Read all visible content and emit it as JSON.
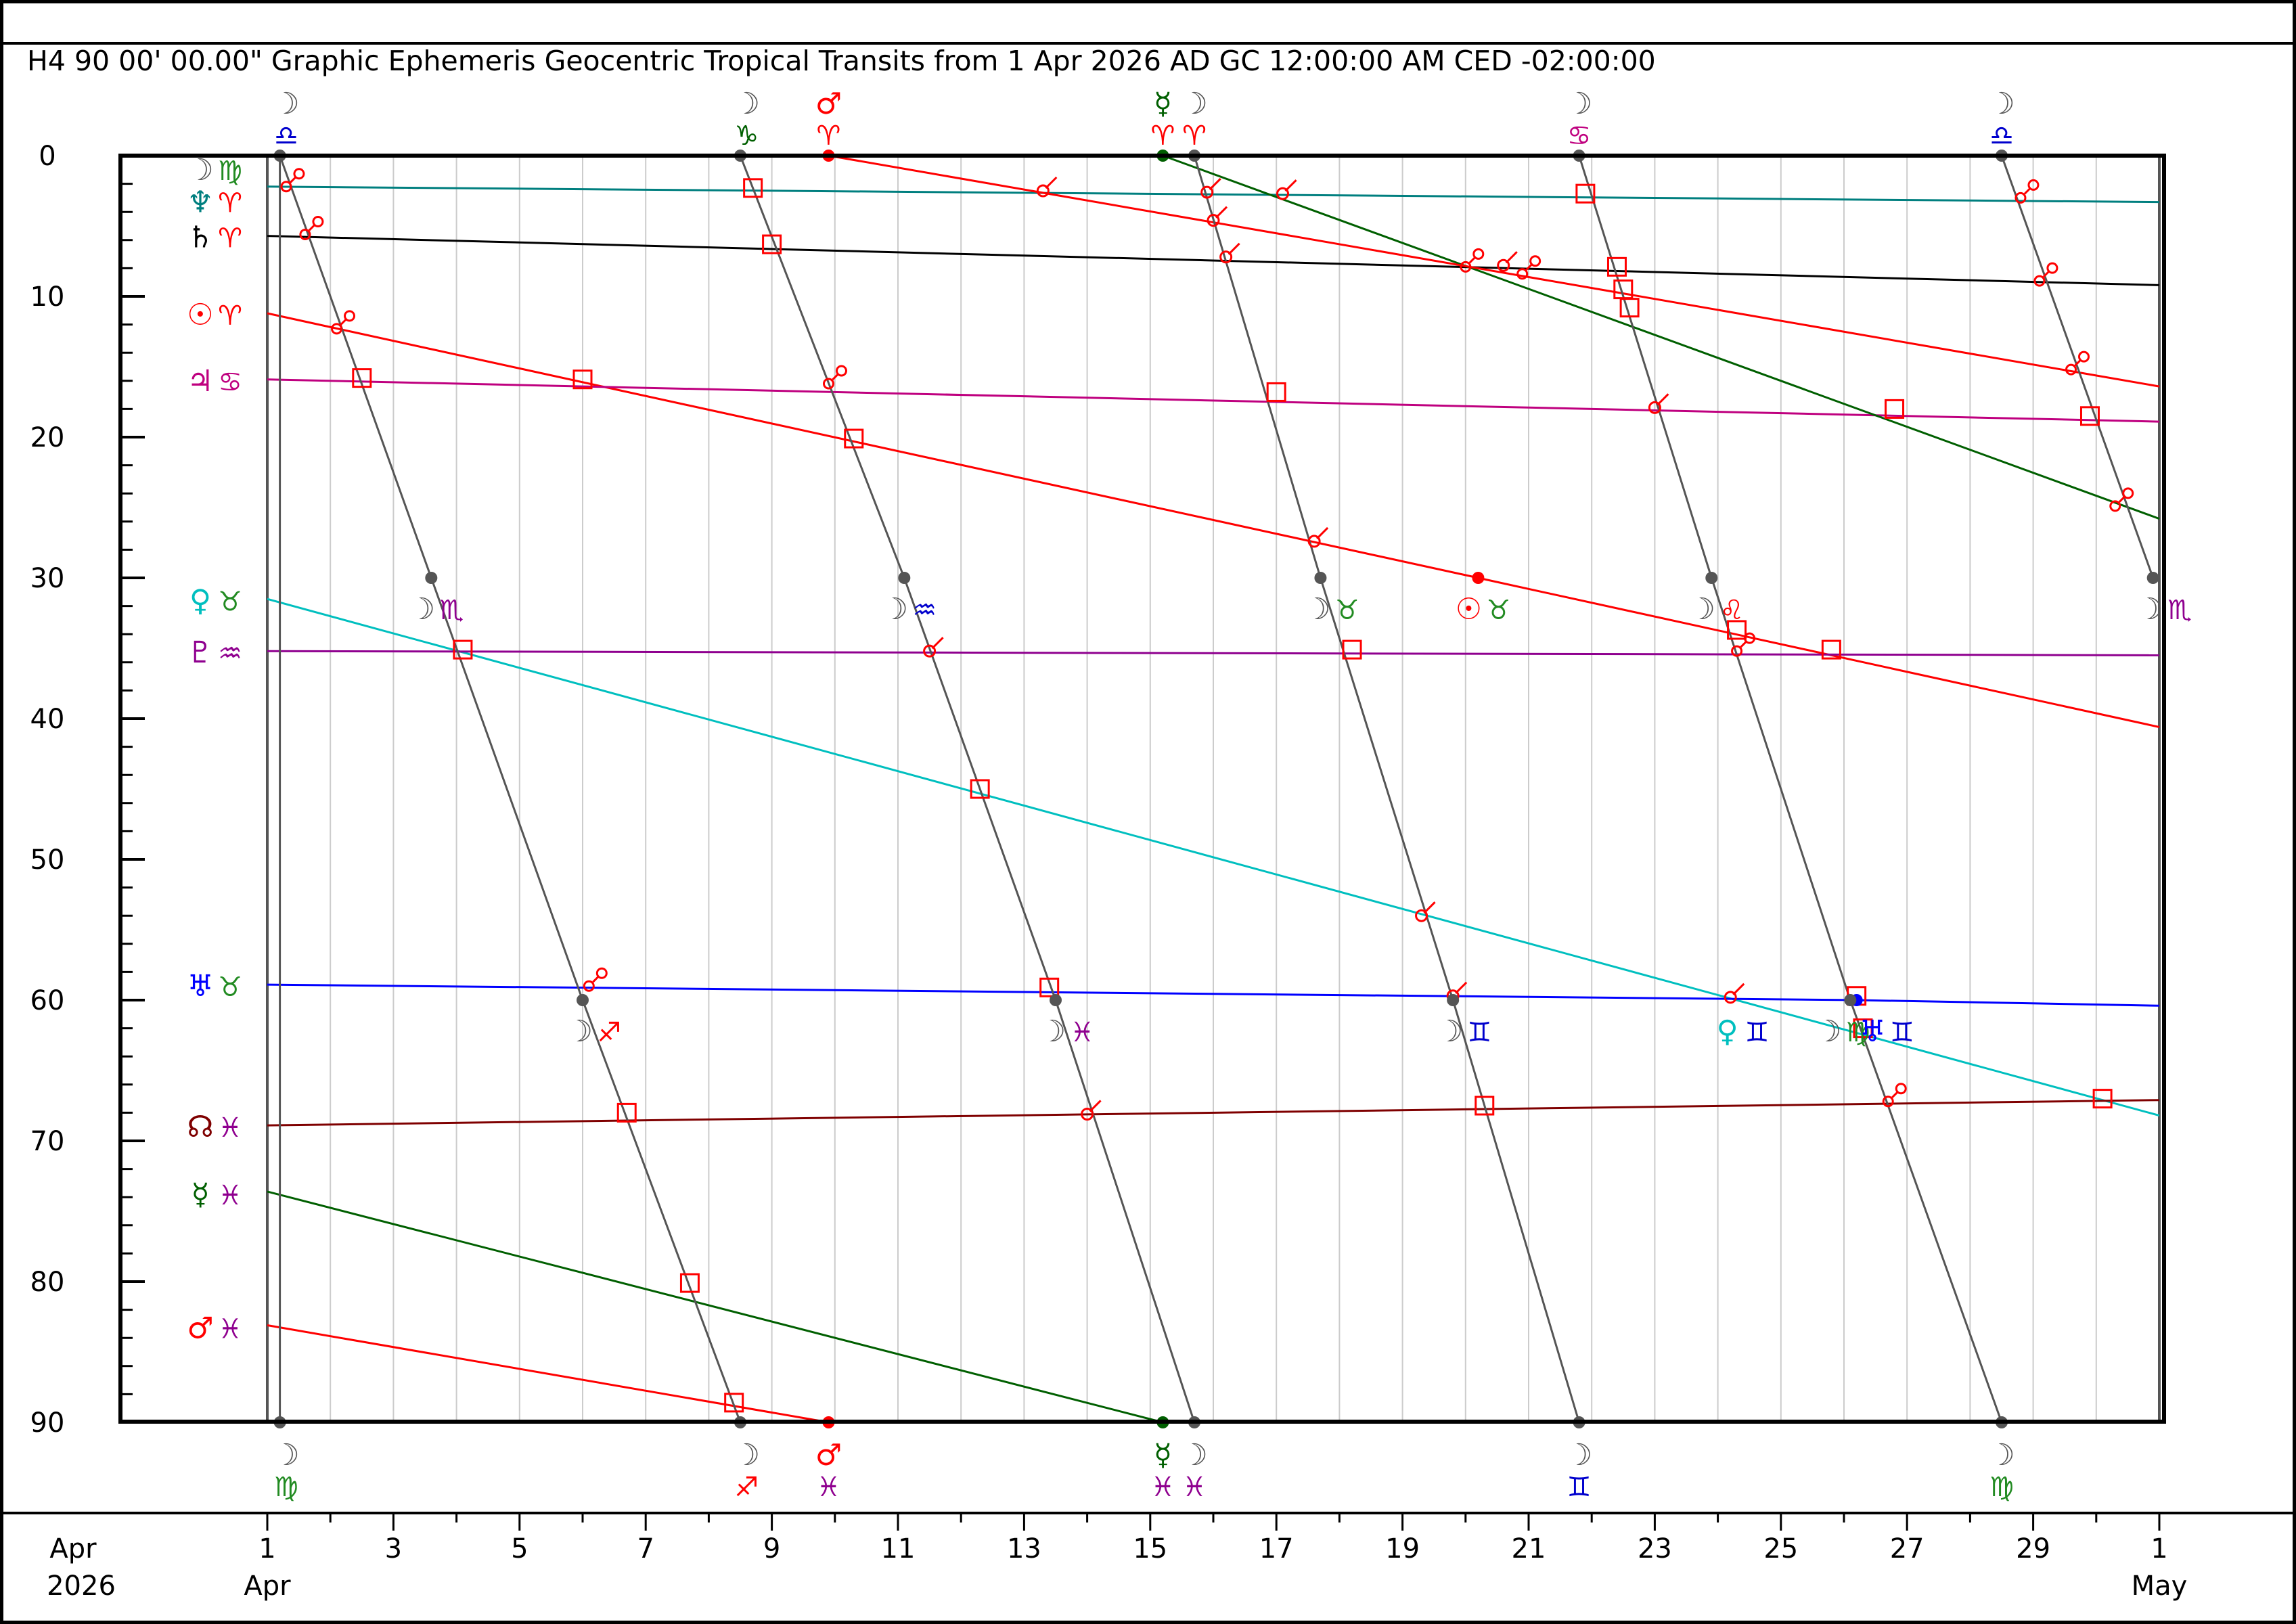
{
  "chart_data": {
    "type": "line",
    "title": "H4   90 00' 00.00\" Graphic Ephemeris Geocentric Tropical Transits from 1 Apr 2026 AD GC 12:00:00 AM CED -02:00:00",
    "xlabel": "",
    "ylabel": "",
    "x_range": [
      "2026-04-01",
      "2026-05-01"
    ],
    "ylim": [
      90,
      0
    ],
    "y_ticks": [
      0,
      10,
      20,
      30,
      40,
      50,
      60,
      70,
      80,
      90
    ],
    "x_tick_labels": [
      {
        "day": 1,
        "label": "1"
      },
      {
        "day": 3,
        "label": "3"
      },
      {
        "day": 5,
        "label": "5"
      },
      {
        "day": 7,
        "label": "7"
      },
      {
        "day": 9,
        "label": "9"
      },
      {
        "day": 11,
        "label": "11"
      },
      {
        "day": 13,
        "label": "13"
      },
      {
        "day": 15,
        "label": "15"
      },
      {
        "day": 17,
        "label": "17"
      },
      {
        "day": 19,
        "label": "19"
      },
      {
        "day": 21,
        "label": "21"
      },
      {
        "day": 23,
        "label": "23"
      },
      {
        "day": 25,
        "label": "25"
      },
      {
        "day": 27,
        "label": "27"
      },
      {
        "day": 29,
        "label": "29"
      },
      {
        "day": 31,
        "label": "1"
      }
    ],
    "x_corner_label": {
      "line1": "Apr",
      "line2": "2026"
    },
    "x_month_labels": [
      {
        "day": 1,
        "label": "Apr"
      },
      {
        "day": 31,
        "label": "May"
      }
    ],
    "grid": true,
    "series": [
      {
        "glyph": "♆♈",
        "color": "#007f7f",
        "points": [
          [
            1,
            2.2
          ],
          [
            31,
            3.3
          ]
        ]
      },
      {
        "glyph": "♄♈",
        "color": "#000000",
        "points": [
          [
            1,
            5.7
          ],
          [
            31,
            9.2
          ]
        ]
      },
      {
        "glyph": "☉♈",
        "color": "#ff0000",
        "points": [
          [
            1,
            11.2
          ],
          [
            20.2,
            30
          ],
          [
            31,
            40.6
          ]
        ]
      },
      {
        "glyph": "♃♋",
        "color": "#bf007f",
        "points": [
          [
            1,
            15.9
          ],
          [
            31,
            18.9
          ]
        ]
      },
      {
        "glyph": "♀♉",
        "color": "#00bfbf",
        "points": [
          [
            1,
            31.5
          ],
          [
            31,
            68.2
          ]
        ]
      },
      {
        "glyph": "♇♒",
        "color": "#8f008f",
        "points": [
          [
            1,
            35.2
          ],
          [
            31,
            35.5
          ]
        ]
      },
      {
        "glyph": "♅♉",
        "color": "#0000ff",
        "points": [
          [
            1,
            58.9
          ],
          [
            26.2,
            60
          ],
          [
            31,
            60.4
          ]
        ]
      },
      {
        "glyph": "☊♓",
        "color": "#7f0000",
        "points": [
          [
            1,
            68.9
          ],
          [
            31,
            67.1
          ]
        ]
      },
      {
        "glyph": "☿♓",
        "color": "#005f00",
        "points": [
          [
            1,
            73.6
          ],
          [
            15.2,
            90
          ]
        ]
      },
      {
        "glyph": "☿♈",
        "color": "#005f00",
        "points": [
          [
            15.2,
            0
          ],
          [
            31,
            25.8
          ]
        ]
      },
      {
        "glyph": "♂♓",
        "color": "#ff0000",
        "points": [
          [
            1,
            83.1
          ],
          [
            9.9,
            90
          ]
        ]
      },
      {
        "glyph": "♂♈",
        "color": "#ff0000",
        "points": [
          [
            9.9,
            0
          ],
          [
            31,
            16.4
          ]
        ]
      },
      {
        "glyph": "☽",
        "color": "#555555",
        "points": [
          [
            1.2,
            0
          ],
          [
            1.2,
            90
          ]
        ]
      },
      {
        "glyph": "☽",
        "color": "#555555",
        "points": [
          [
            1.2,
            0
          ],
          [
            3.6,
            30
          ],
          [
            6.0,
            60
          ],
          [
            8.5,
            90
          ]
        ]
      },
      {
        "glyph": "☽",
        "color": "#555555",
        "points": [
          [
            8.5,
            0
          ],
          [
            11.1,
            30
          ],
          [
            13.5,
            60
          ],
          [
            15.7,
            90
          ]
        ]
      },
      {
        "glyph": "☽",
        "color": "#555555",
        "points": [
          [
            15.7,
            0
          ],
          [
            17.7,
            30
          ],
          [
            19.8,
            60
          ],
          [
            21.8,
            90
          ]
        ]
      },
      {
        "glyph": "☽",
        "color": "#555555",
        "points": [
          [
            21.8,
            0
          ],
          [
            23.9,
            30
          ],
          [
            26.1,
            60
          ],
          [
            28.5,
            90
          ]
        ]
      },
      {
        "glyph": "☽",
        "color": "#555555",
        "points": [
          [
            28.5,
            0
          ],
          [
            30.9,
            30
          ]
        ]
      }
    ],
    "left_labels": [
      {
        "y": 1.0,
        "glyphs": [
          "☽",
          "♍"
        ],
        "colors": [
          "#555555",
          "#228b22"
        ]
      },
      {
        "y": 3.3,
        "glyphs": [
          "♆",
          "♈"
        ],
        "colors": [
          "#007f7f",
          "#ff0000"
        ]
      },
      {
        "y": 5.8,
        "glyphs": [
          "♄",
          "♈"
        ],
        "colors": [
          "#000000",
          "#ff0000"
        ]
      },
      {
        "y": 11.3,
        "glyphs": [
          "☉",
          "♈"
        ],
        "colors": [
          "#ff0000",
          "#ff0000"
        ]
      },
      {
        "y": 16.0,
        "glyphs": [
          "♃",
          "♋"
        ],
        "colors": [
          "#bf007f",
          "#bf007f"
        ]
      },
      {
        "y": 31.6,
        "glyphs": [
          "♀",
          "♉"
        ],
        "colors": [
          "#00bfbf",
          "#228b22"
        ]
      },
      {
        "y": 35.3,
        "glyphs": [
          "♇",
          "♒"
        ],
        "colors": [
          "#8f008f",
          "#8f008f"
        ]
      },
      {
        "y": 59.0,
        "glyphs": [
          "♅",
          "♉"
        ],
        "colors": [
          "#0000ff",
          "#228b22"
        ]
      },
      {
        "y": 69.0,
        "glyphs": [
          "☊",
          "♓"
        ],
        "colors": [
          "#7f0000",
          "#8f008f"
        ]
      },
      {
        "y": 73.8,
        "glyphs": [
          "☿",
          "♓"
        ],
        "colors": [
          "#005f00",
          "#8f008f"
        ]
      },
      {
        "y": 83.3,
        "glyphs": [
          "♂",
          "♓"
        ],
        "colors": [
          "#ff0000",
          "#8f008f"
        ]
      }
    ],
    "top_labels": [
      {
        "day": 1.3,
        "glyphs": [
          "☽",
          "♎"
        ],
        "colors": [
          "#555555",
          "#0000cd"
        ]
      },
      {
        "day": 8.6,
        "glyphs": [
          "☽",
          "♑"
        ],
        "colors": [
          "#555555",
          "#005f00"
        ]
      },
      {
        "day": 9.9,
        "glyphs": [
          "♂",
          "♈"
        ],
        "colors": [
          "#ff0000",
          "#ff0000"
        ]
      },
      {
        "day": 15.2,
        "glyphs": [
          "☿",
          "♈"
        ],
        "colors": [
          "#005f00",
          "#ff0000"
        ]
      },
      {
        "day": 15.7,
        "glyphs": [
          "☽",
          "♈"
        ],
        "colors": [
          "#555555",
          "#ff0000"
        ]
      },
      {
        "day": 21.8,
        "glyphs": [
          "☽",
          "♋"
        ],
        "colors": [
          "#555555",
          "#bf007f"
        ]
      },
      {
        "day": 28.5,
        "glyphs": [
          "☽",
          "♎"
        ],
        "colors": [
          "#555555",
          "#0000cd"
        ]
      }
    ],
    "bottom_labels": [
      {
        "day": 1.3,
        "glyphs": [
          "☽",
          "♍"
        ],
        "colors": [
          "#555555",
          "#228b22"
        ]
      },
      {
        "day": 8.6,
        "glyphs": [
          "☽",
          "♐"
        ],
        "colors": [
          "#555555",
          "#ff0000"
        ]
      },
      {
        "day": 9.9,
        "glyphs": [
          "♂",
          "♓"
        ],
        "colors": [
          "#ff0000",
          "#8f008f"
        ]
      },
      {
        "day": 15.2,
        "glyphs": [
          "☿",
          "♓"
        ],
        "colors": [
          "#005f00",
          "#8f008f"
        ]
      },
      {
        "day": 15.7,
        "glyphs": [
          "☽",
          "♓"
        ],
        "colors": [
          "#555555",
          "#8f008f"
        ]
      },
      {
        "day": 21.8,
        "glyphs": [
          "☽",
          "♊"
        ],
        "colors": [
          "#555555",
          "#0000cd"
        ]
      },
      {
        "day": 28.5,
        "glyphs": [
          "☽",
          "♍"
        ],
        "colors": [
          "#555555",
          "#228b22"
        ]
      }
    ],
    "inline_labels": [
      {
        "day": 3.6,
        "y": 32.2,
        "glyphs": [
          "☽",
          "♏"
        ],
        "colors": [
          "#555555",
          "#8f008f"
        ]
      },
      {
        "day": 11.1,
        "y": 32.2,
        "glyphs": [
          "☽",
          "♒"
        ],
        "colors": [
          "#555555",
          "#0000cd"
        ]
      },
      {
        "day": 17.8,
        "y": 32.2,
        "glyphs": [
          "☽",
          "♉"
        ],
        "colors": [
          "#555555",
          "#228b22"
        ]
      },
      {
        "day": 20.2,
        "y": 32.2,
        "glyphs": [
          "☉",
          "♉"
        ],
        "colors": [
          "#ff0000",
          "#228b22"
        ]
      },
      {
        "day": 23.9,
        "y": 32.2,
        "glyphs": [
          "☽",
          "♌"
        ],
        "colors": [
          "#555555",
          "#ff0000"
        ]
      },
      {
        "day": 31.0,
        "y": 32.2,
        "glyphs": [
          "☽",
          "♏"
        ],
        "colors": [
          "#555555",
          "#8f008f"
        ]
      },
      {
        "day": 6.1,
        "y": 62.2,
        "glyphs": [
          "☽",
          "♐"
        ],
        "colors": [
          "#555555",
          "#ff0000"
        ]
      },
      {
        "day": 13.6,
        "y": 62.2,
        "glyphs": [
          "☽",
          "♓"
        ],
        "colors": [
          "#555555",
          "#8f008f"
        ]
      },
      {
        "day": 19.9,
        "y": 62.2,
        "glyphs": [
          "☽",
          "♊"
        ],
        "colors": [
          "#555555",
          "#0000cd"
        ]
      },
      {
        "day": 24.3,
        "y": 62.2,
        "glyphs": [
          "♀",
          "♊"
        ],
        "colors": [
          "#00bfbf",
          "#0000cd"
        ]
      },
      {
        "day": 25.9,
        "y": 62.2,
        "glyphs": [
          "☽",
          "♍"
        ],
        "colors": [
          "#555555",
          "#228b22"
        ]
      },
      {
        "day": 26.6,
        "y": 62.2,
        "glyphs": [
          "♅",
          "♊"
        ],
        "colors": [
          "#0000ff",
          "#0000cd"
        ]
      }
    ],
    "aspect_squares": [
      [
        2.5,
        15.8
      ],
      [
        4.1,
        35.1
      ],
      [
        6.7,
        68.0
      ],
      [
        7.7,
        80.1
      ],
      [
        8.4,
        88.6
      ],
      [
        8.7,
        2.3
      ],
      [
        9.0,
        6.3
      ],
      [
        10.3,
        20.1
      ],
      [
        12.3,
        45.0
      ],
      [
        13.4,
        59.1
      ],
      [
        6.0,
        15.9
      ],
      [
        17.0,
        16.8
      ],
      [
        18.2,
        35.1
      ],
      [
        20.3,
        67.5
      ],
      [
        21.9,
        2.7
      ],
      [
        22.4,
        7.9
      ],
      [
        22.5,
        9.5
      ],
      [
        22.6,
        10.8
      ],
      [
        24.3,
        33.7
      ],
      [
        25.8,
        35.1
      ],
      [
        26.2,
        59.7
      ],
      [
        26.3,
        62.0
      ],
      [
        26.8,
        18.0
      ],
      [
        29.9,
        18.5
      ],
      [
        30.1,
        67.0
      ]
    ],
    "aspect_sextiles": [
      [
        13.3,
        2.5
      ],
      [
        15.9,
        2.6
      ],
      [
        16.0,
        4.6
      ],
      [
        16.2,
        7.2
      ],
      [
        17.1,
        2.7
      ],
      [
        17.6,
        27.4
      ],
      [
        11.5,
        35.2
      ],
      [
        14.0,
        68.1
      ],
      [
        19.3,
        54.0
      ],
      [
        19.8,
        59.7
      ],
      [
        20.6,
        7.8
      ],
      [
        23.0,
        17.9
      ],
      [
        24.2,
        59.8
      ]
    ],
    "aspect_oppositions": [
      [
        1.3,
        2.2
      ],
      [
        1.6,
        5.6
      ],
      [
        2.1,
        12.3
      ],
      [
        6.1,
        59.0
      ],
      [
        9.9,
        16.2
      ],
      [
        20.0,
        7.9
      ],
      [
        20.9,
        8.4
      ],
      [
        24.3,
        35.2
      ],
      [
        26.7,
        67.2
      ],
      [
        28.8,
        3.0
      ],
      [
        29.1,
        8.9
      ],
      [
        29.6,
        15.2
      ],
      [
        30.3,
        24.9
      ]
    ],
    "event_dots": [
      {
        "day": 9.9,
        "y": 0,
        "color": "#ff0000"
      },
      {
        "day": 9.9,
        "y": 90,
        "color": "#ff0000"
      },
      {
        "day": 15.2,
        "y": 0,
        "color": "#005f00"
      },
      {
        "day": 15.2,
        "y": 90,
        "color": "#005f00"
      },
      {
        "day": 20.2,
        "y": 30,
        "color": "#ff0000"
      },
      {
        "day": 26.2,
        "y": 60,
        "color": "#0000ff"
      },
      {
        "day": 1.2,
        "y": 0,
        "color": "#555555"
      },
      {
        "day": 1.2,
        "y": 90,
        "color": "#555555"
      },
      {
        "day": 3.6,
        "y": 30,
        "color": "#555555"
      },
      {
        "day": 6.0,
        "y": 60,
        "color": "#555555"
      },
      {
        "day": 8.5,
        "y": 0,
        "color": "#555555"
      },
      {
        "day": 8.5,
        "y": 90,
        "color": "#555555"
      },
      {
        "day": 11.1,
        "y": 30,
        "color": "#555555"
      },
      {
        "day": 13.5,
        "y": 60,
        "color": "#555555"
      },
      {
        "day": 15.7,
        "y": 0,
        "color": "#555555"
      },
      {
        "day": 15.7,
        "y": 90,
        "color": "#555555"
      },
      {
        "day": 17.7,
        "y": 30,
        "color": "#555555"
      },
      {
        "day": 19.8,
        "y": 60,
        "color": "#555555"
      },
      {
        "day": 21.8,
        "y": 0,
        "color": "#555555"
      },
      {
        "day": 21.8,
        "y": 90,
        "color": "#555555"
      },
      {
        "day": 23.9,
        "y": 30,
        "color": "#555555"
      },
      {
        "day": 26.1,
        "y": 60,
        "color": "#555555"
      },
      {
        "day": 28.5,
        "y": 0,
        "color": "#555555"
      },
      {
        "day": 28.5,
        "y": 90,
        "color": "#555555"
      },
      {
        "day": 30.9,
        "y": 30,
        "color": "#555555"
      }
    ]
  }
}
